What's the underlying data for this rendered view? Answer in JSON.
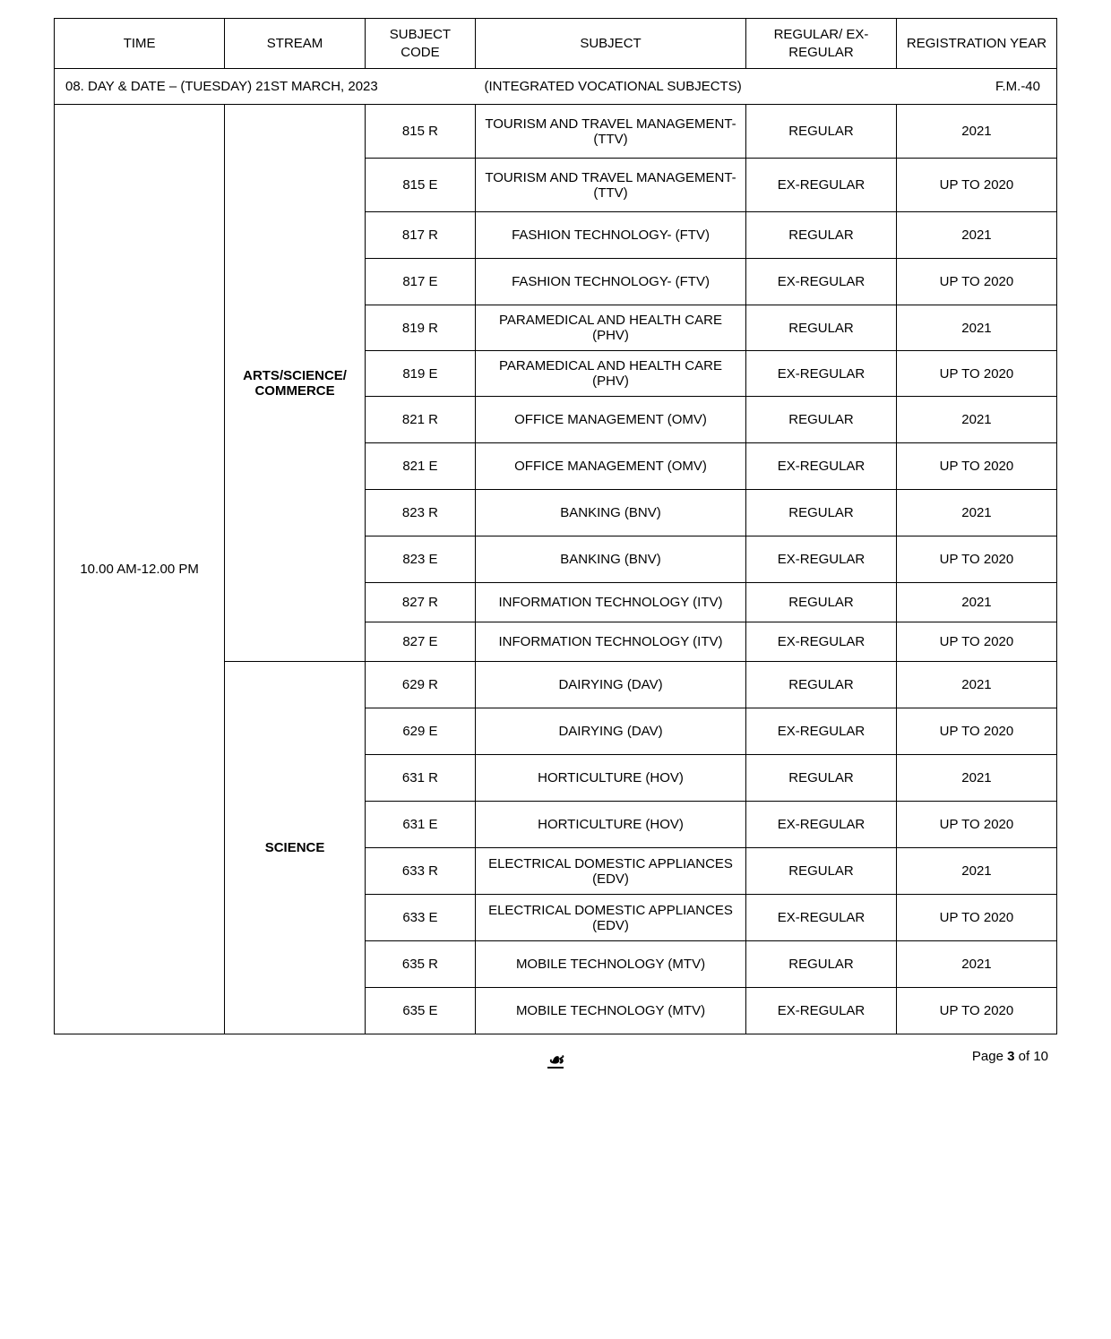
{
  "headers": {
    "time": "TIME",
    "stream": "STREAM",
    "code": "SUBJECT CODE",
    "subject": "SUBJECT",
    "regular": "REGULAR/ EX-REGULAR",
    "year": "REGISTRATION YEAR"
  },
  "dateRow": {
    "label": "08. DAY & DATE – (TUESDAY) 21ST MARCH, 2023",
    "dash": "-",
    "subject": "(INTEGRATED VOCATIONAL SUBJECTS)",
    "fm": "F.M.-40"
  },
  "time": "10.00 AM-12.00 PM",
  "stream1": "ARTS/SCIENCE/ COMMERCE",
  "stream2": "SCIENCE",
  "rows1": [
    {
      "code": "815 R",
      "subject": "TOURISM AND TRAVEL MANAGEMENT- (TTV)",
      "reg": "REGULAR",
      "year": "2021",
      "h": "tall"
    },
    {
      "code": "815 E",
      "subject": "TOURISM AND TRAVEL MANAGEMENT- (TTV)",
      "reg": "EX-REGULAR",
      "year": "UP TO 2020",
      "h": "tall"
    },
    {
      "code": "817 R",
      "subject": "FASHION TECHNOLOGY-  (FTV)",
      "reg": "REGULAR",
      "year": "2021",
      "h": "med"
    },
    {
      "code": "817 E",
      "subject": "FASHION TECHNOLOGY-  (FTV)",
      "reg": "EX-REGULAR",
      "year": "UP TO 2020",
      "h": "med"
    },
    {
      "code": "819 R",
      "subject": "PARAMEDICAL AND HEALTH CARE (PHV)",
      "reg": "REGULAR",
      "year": "2021",
      "h": "short"
    },
    {
      "code": "819 E",
      "subject": "PARAMEDICAL AND HEALTH CARE (PHV)",
      "reg": "EX-REGULAR",
      "year": "UP TO 2020",
      "h": "short"
    },
    {
      "code": "821 R",
      "subject": "OFFICE MANAGEMENT (OMV)",
      "reg": "REGULAR",
      "year": "2021",
      "h": "med"
    },
    {
      "code": "821 E",
      "subject": "OFFICE MANAGEMENT (OMV)",
      "reg": "EX-REGULAR",
      "year": "UP TO 2020",
      "h": "med"
    },
    {
      "code": "823 R",
      "subject": "BANKING (BNV)",
      "reg": "REGULAR",
      "year": "2021",
      "h": "med"
    },
    {
      "code": "823 E",
      "subject": "BANKING (BNV)",
      "reg": "EX-REGULAR",
      "year": "UP TO 2020",
      "h": "med"
    },
    {
      "code": "827 R",
      "subject": "INFORMATION TECHNOLOGY  (ITV)",
      "reg": "REGULAR",
      "year": "2021",
      "h": "short"
    },
    {
      "code": "827 E",
      "subject": "INFORMATION TECHNOLOGY  (ITV)",
      "reg": "EX-REGULAR",
      "year": "UP TO 2020",
      "h": "short"
    }
  ],
  "rows2": [
    {
      "code": "629 R",
      "subject": "DAIRYING (DAV)",
      "reg": "REGULAR",
      "year": "2021",
      "h": "med"
    },
    {
      "code": "629 E",
      "subject": "DAIRYING (DAV)",
      "reg": "EX-REGULAR",
      "year": "UP TO 2020",
      "h": "med"
    },
    {
      "code": "631 R",
      "subject": "HORTICULTURE (HOV)",
      "reg": "REGULAR",
      "year": "2021",
      "h": "med"
    },
    {
      "code": "631 E",
      "subject": "HORTICULTURE (HOV)",
      "reg": "EX-REGULAR",
      "year": "UP TO 2020",
      "h": "med"
    },
    {
      "code": "633 R",
      "subject": "ELECTRICAL DOMESTIC APPLIANCES (EDV)",
      "reg": "REGULAR",
      "year": "2021",
      "h": "med"
    },
    {
      "code": "633 E",
      "subject": "ELECTRICAL DOMESTIC APPLIANCES (EDV)",
      "reg": "EX-REGULAR",
      "year": "UP TO 2020",
      "h": "med"
    },
    {
      "code": "635 R",
      "subject": "MOBILE TECHNOLOGY (MTV)",
      "reg": "REGULAR",
      "year": "2021",
      "h": "med"
    },
    {
      "code": "635 E",
      "subject": "MOBILE TECHNOLOGY (MTV)",
      "reg": "EX-REGULAR",
      "year": "UP TO 2020",
      "h": "med"
    }
  ],
  "footer": {
    "sign": "☙",
    "page": "Page ",
    "pageNum": "3",
    "pageOf": " of 10"
  }
}
